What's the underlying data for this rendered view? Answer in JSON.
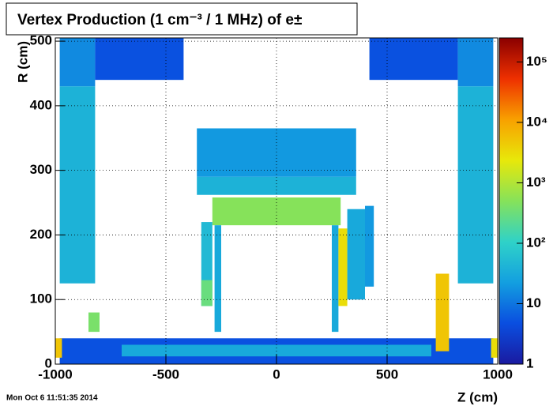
{
  "chart_data": {
    "type": "heatmap",
    "title": "Vertex Production (1 cm⁻³ / 1 MHz) of e±",
    "x_label": "Z (cm)",
    "y_label": "R (cm)",
    "timestamp": "Mon Oct  6 11:51:35 2014",
    "xlim": [
      -1000,
      1000
    ],
    "xticks": [
      -1000,
      -500,
      0,
      500,
      1000
    ],
    "ylim": [
      0,
      505
    ],
    "yticks": [
      0,
      100,
      200,
      300,
      400,
      500
    ],
    "zlim": [
      1,
      250000
    ],
    "zlog": true,
    "zticks": [
      1,
      10,
      {
        "value": 100,
        "label": "10²"
      },
      {
        "value": 1000,
        "label": "10³"
      },
      {
        "value": 10000,
        "label": "10⁴"
      },
      {
        "value": 100000,
        "label": "10⁵"
      }
    ],
    "grid": true,
    "colormap": [
      "#1a1aa0",
      "#0a4ee0",
      "#139fe0",
      "#2fd2c8",
      "#86e25a",
      "#e8e80a",
      "#f8a000",
      "#ee3000",
      "#8a0000"
    ],
    "cells": [
      {
        "z": [
          -980,
          -820
        ],
        "r": [
          430,
          505
        ],
        "value": 15
      },
      {
        "z": [
          -820,
          -420
        ],
        "r": [
          440,
          505
        ],
        "value": 5
      },
      {
        "z": [
          420,
          820
        ],
        "r": [
          440,
          505
        ],
        "value": 5
      },
      {
        "z": [
          820,
          980
        ],
        "r": [
          430,
          505
        ],
        "value": 15
      },
      {
        "z": [
          -980,
          -820
        ],
        "r": [
          125,
          430
        ],
        "value": 40
      },
      {
        "z": [
          820,
          980
        ],
        "r": [
          125,
          430
        ],
        "value": 40
      },
      {
        "z": [
          -360,
          360
        ],
        "r": [
          290,
          365
        ],
        "value": 20
      },
      {
        "z": [
          -360,
          360
        ],
        "r": [
          262,
          290
        ],
        "value": 40
      },
      {
        "z": [
          -290,
          290
        ],
        "r": [
          215,
          258
        ],
        "value": 500
      },
      {
        "z": [
          -280,
          -250
        ],
        "r": [
          50,
          215
        ],
        "value": 30
      },
      {
        "z": [
          250,
          280
        ],
        "r": [
          50,
          215
        ],
        "value": 30
      },
      {
        "z": [
          -340,
          -290
        ],
        "r": [
          90,
          220
        ],
        "value": 50
      },
      {
        "z": [
          -340,
          -290
        ],
        "r": [
          90,
          130
        ],
        "value": 300
      },
      {
        "z": [
          280,
          320
        ],
        "r": [
          90,
          210
        ],
        "value": 3000
      },
      {
        "z": [
          320,
          400
        ],
        "r": [
          100,
          240
        ],
        "value": 30
      },
      {
        "z": [
          400,
          440
        ],
        "r": [
          120,
          245
        ],
        "value": 20
      },
      {
        "z": [
          -850,
          -800
        ],
        "r": [
          50,
          80
        ],
        "value": 400
      },
      {
        "z": [
          -980,
          980
        ],
        "r": [
          0,
          40
        ],
        "value": 5
      },
      {
        "z": [
          -700,
          700
        ],
        "r": [
          12,
          30
        ],
        "value": 30
      },
      {
        "z": [
          720,
          780
        ],
        "r": [
          20,
          140
        ],
        "value": 5000
      },
      {
        "z": [
          -1000,
          -970
        ],
        "r": [
          10,
          40
        ],
        "value": 5000
      },
      {
        "z": [
          970,
          1000
        ],
        "r": [
          10,
          40
        ],
        "value": 3000
      }
    ]
  }
}
